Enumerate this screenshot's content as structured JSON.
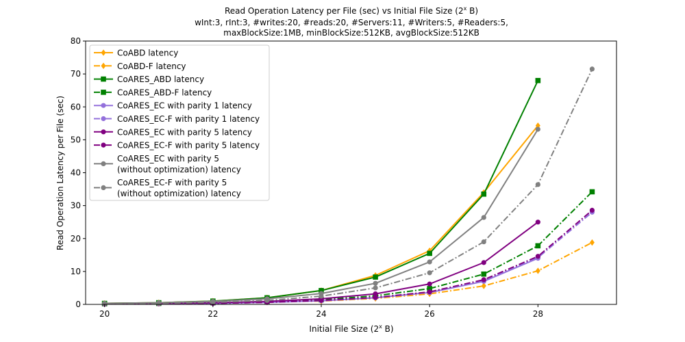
{
  "chart_data": {
    "type": "line",
    "title_lines": [
      "Read Operation Latency per File (sec) vs Initial File Size (2",
      "wInt:3, rInt:3, #writes:20, #reads:20, #Servers:11, #Writers:5, #Readers:5,",
      "maxBlockSize:1MB, minBlockSize:512KB, avgBlockSize:512KB"
    ],
    "title_sup": "x",
    "title_tail": " B)",
    "xlabel": "Initial File Size (2",
    "xlabel_sup": "x",
    "xlabel_tail": " B)",
    "ylabel": "Read Operation Latency per File (sec)",
    "xlim": [
      19.65,
      29.45
    ],
    "ylim": [
      0,
      80
    ],
    "xticks": [
      20,
      22,
      24,
      26,
      28
    ],
    "yticks": [
      0,
      10,
      20,
      30,
      40,
      50,
      60,
      70,
      80
    ],
    "legend_position": "top-left",
    "series": [
      {
        "name": "CoABD latency",
        "color": "#ffa500",
        "dash": "solid",
        "marker": "diamond",
        "x": [
          20,
          21,
          22,
          23,
          24,
          25,
          26,
          27,
          28
        ],
        "y": [
          0.3,
          0.5,
          1.0,
          2.0,
          4.2,
          8.8,
          16.3,
          34.0,
          54.3
        ]
      },
      {
        "name": "CoABD-F latency",
        "color": "#ffa500",
        "dash": "dashdot",
        "marker": "diamond",
        "x": [
          20,
          21,
          22,
          23,
          24,
          25,
          26,
          27,
          28,
          29
        ],
        "y": [
          0.2,
          0.3,
          0.4,
          0.7,
          1.0,
          1.8,
          3.2,
          5.6,
          10.2,
          18.8
        ]
      },
      {
        "name": "CoARES_ABD latency",
        "color": "#008000",
        "dash": "solid",
        "marker": "square",
        "x": [
          20,
          21,
          22,
          23,
          24,
          25,
          26,
          27,
          28
        ],
        "y": [
          0.3,
          0.5,
          1.0,
          2.0,
          4.2,
          8.3,
          15.5,
          33.5,
          68.0
        ]
      },
      {
        "name": "CoARES_ABD-F latency",
        "color": "#008000",
        "dash": "dashdot",
        "marker": "square",
        "x": [
          20,
          21,
          22,
          23,
          24,
          25,
          26,
          27,
          28,
          29
        ],
        "y": [
          0.2,
          0.3,
          0.5,
          0.8,
          1.4,
          2.6,
          4.8,
          9.2,
          17.8,
          34.2
        ]
      },
      {
        "name": "CoARES_EC with parity 1 latency",
        "color": "#9370db",
        "dash": "solid",
        "marker": "circle",
        "x": [
          20,
          21,
          22,
          23,
          24,
          25,
          26,
          27,
          28
        ],
        "y": [
          0.1,
          0.2,
          0.3,
          0.6,
          1.1,
          2.0,
          3.6,
          7.0,
          14.0
        ]
      },
      {
        "name": "CoARES_EC-F with parity 1 latency",
        "color": "#9370db",
        "dash": "dashdot",
        "marker": "circle",
        "x": [
          20,
          21,
          22,
          23,
          24,
          25,
          26,
          27,
          28,
          29
        ],
        "y": [
          0.1,
          0.2,
          0.3,
          0.6,
          1.1,
          2.0,
          3.7,
          7.2,
          14.2,
          28.0
        ]
      },
      {
        "name": "CoARES_EC with parity 5 latency",
        "color": "#800080",
        "dash": "solid",
        "marker": "circle",
        "x": [
          20,
          21,
          22,
          23,
          24,
          25,
          26,
          27,
          28
        ],
        "y": [
          0.2,
          0.3,
          0.5,
          0.9,
          1.7,
          3.2,
          6.2,
          12.7,
          25.0
        ]
      },
      {
        "name": "CoARES_EC-F with parity 5 latency",
        "color": "#800080",
        "dash": "dashdot",
        "marker": "circle",
        "x": [
          20,
          21,
          22,
          23,
          24,
          25,
          26,
          27,
          28,
          29
        ],
        "y": [
          0.1,
          0.2,
          0.3,
          0.6,
          1.2,
          2.1,
          3.8,
          7.5,
          14.6,
          28.6
        ]
      },
      {
        "name": "CoARES_EC with parity 5\n(without optimization) latency",
        "color": "#808080",
        "dash": "solid",
        "marker": "circle",
        "x": [
          20,
          21,
          22,
          23,
          24,
          25,
          26,
          27,
          28
        ],
        "y": [
          0.3,
          0.5,
          0.9,
          1.7,
          3.3,
          6.4,
          12.9,
          26.4,
          53.2
        ]
      },
      {
        "name": "CoARES_EC-F with parity 5\n(without optimization) latency",
        "color": "#808080",
        "dash": "dashdot",
        "marker": "circle",
        "x": [
          20,
          21,
          22,
          23,
          24,
          25,
          26,
          27,
          28,
          29
        ],
        "y": [
          0.2,
          0.3,
          0.6,
          1.2,
          2.5,
          5.0,
          9.6,
          19.0,
          36.4,
          71.5
        ]
      }
    ]
  }
}
